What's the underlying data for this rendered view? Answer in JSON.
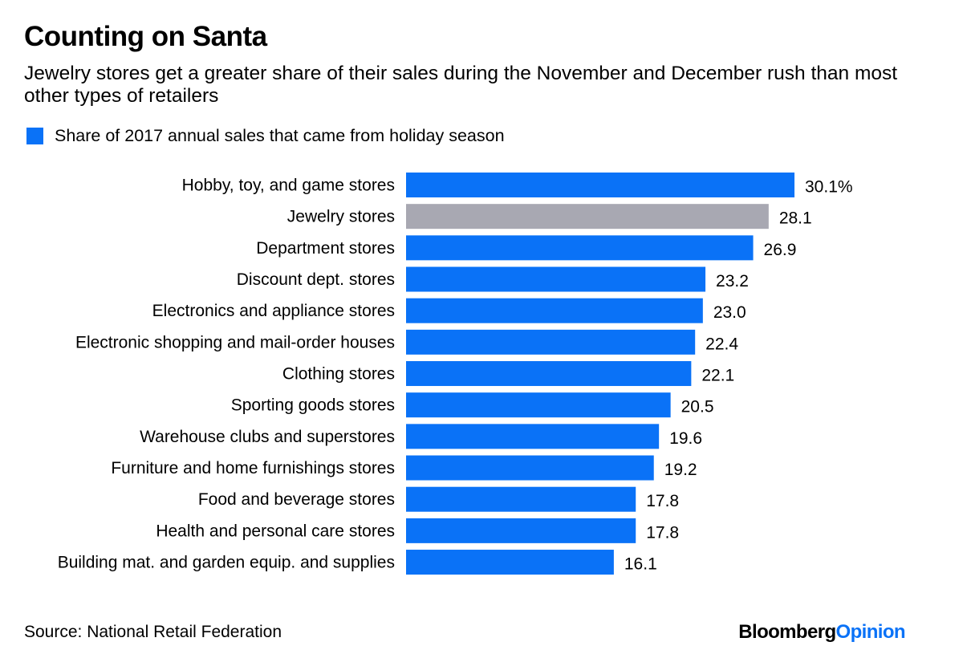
{
  "header": {
    "title": "Counting on Santa",
    "subtitle": "Jewelry stores get a greater share of their sales during the November and December rush than most other types of retailers"
  },
  "legend": {
    "label": "Share of 2017 annual sales that came from holiday season",
    "color": "#0a72f7"
  },
  "footer": {
    "source": "Source: National Retail Federation",
    "brand_primary": "Bloomberg",
    "brand_secondary": "Opinion",
    "brand_secondary_color": "#0a72f7"
  },
  "colors": {
    "primary_bar": "#0a72f7",
    "highlight_bar": "#a8a8b2"
  },
  "chart_data": {
    "type": "bar",
    "orientation": "horizontal",
    "title": "Counting on Santa",
    "xlabel": "",
    "ylabel": "",
    "xlim": [
      0,
      30.1
    ],
    "grid": false,
    "legend_position": "top-left",
    "highlight_index": 1,
    "categories": [
      "Hobby, toy, and game stores",
      "Jewelry stores",
      "Department stores",
      "Discount dept. stores",
      "Electronics and appliance stores",
      "Electronic shopping and mail-order houses",
      "Clothing stores",
      "Sporting goods stores",
      "Warehouse clubs and superstores",
      "Furniture and home furnishings stores",
      "Food and beverage stores",
      "Health and personal care stores",
      "Building mat. and garden equip. and supplies"
    ],
    "values": [
      30.1,
      28.1,
      26.9,
      23.2,
      23.0,
      22.4,
      22.1,
      20.5,
      19.6,
      19.2,
      17.8,
      17.8,
      16.1
    ],
    "value_labels": [
      "30.1%",
      "28.1",
      "26.9",
      "23.2",
      "23.0",
      "22.4",
      "22.1",
      "20.5",
      "19.6",
      "19.2",
      "17.8",
      "17.8",
      "16.1"
    ]
  }
}
